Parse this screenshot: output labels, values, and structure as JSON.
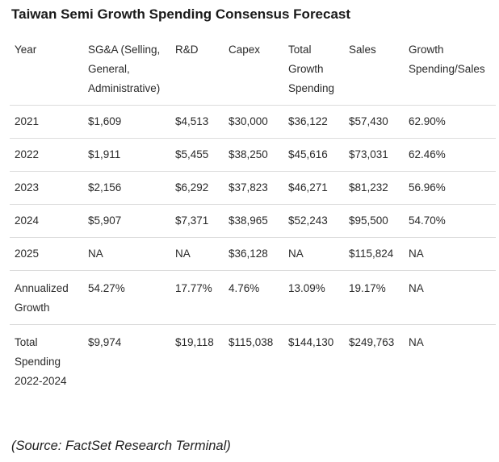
{
  "title": "Taiwan Semi Growth Spending Consensus Forecast",
  "columns": [
    "Year",
    "SG&A (Selling, General, Administrative)",
    "R&D",
    "Capex",
    "Total Growth Spending",
    "Sales",
    "Growth Spending/Sales"
  ],
  "rows": [
    {
      "year": "2021",
      "sga": "$1,609",
      "rd": "$4,513",
      "capex": "$30,000",
      "total": "$36,122",
      "sales": "$57,430",
      "ratio": "62.90%"
    },
    {
      "year": "2022",
      "sga": "$1,911",
      "rd": "$5,455",
      "capex": "$38,250",
      "total": "$45,616",
      "sales": "$73,031",
      "ratio": "62.46%"
    },
    {
      "year": "2023",
      "sga": "$2,156",
      "rd": "$6,292",
      "capex": "$37,823",
      "total": "$46,271",
      "sales": "$81,232",
      "ratio": "56.96%"
    },
    {
      "year": "2024",
      "sga": "$5,907",
      "rd": "$7,371",
      "capex": "$38,965",
      "total": "$52,243",
      "sales": "$95,500",
      "ratio": "54.70%"
    },
    {
      "year": "2025",
      "sga": "NA",
      "rd": "NA",
      "capex": "$36,128",
      "total": "NA",
      "sales": "$115,824",
      "ratio": "NA"
    }
  ],
  "annualized": {
    "label": "Annualized Growth",
    "sga": "54.27%",
    "rd": "17.77%",
    "capex": "4.76%",
    "total": "13.09%",
    "sales": "19.17%",
    "ratio": "NA"
  },
  "total_spending": {
    "label": "Total Spending 2022-2024",
    "sga": "$9,974",
    "rd": "$19,118",
    "capex": "$115,038",
    "total": "$144,130",
    "sales": "$249,763",
    "ratio": "NA"
  },
  "source": "(Source: FactSet Research Terminal)"
}
